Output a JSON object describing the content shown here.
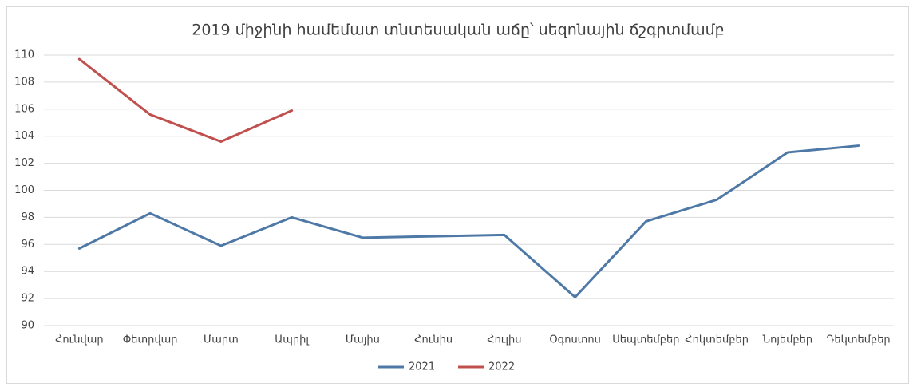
{
  "chart_data": {
    "type": "line",
    "title": "2019 միջինի համեմատ տնտեսական աճը՝ սեզոնային ճշգրտմամբ",
    "categories": [
      "Հունվար",
      "Փետրվար",
      "Մարտ",
      "Ապրիլ",
      "Մայիս",
      "Հունիս",
      "Հուլիս",
      "Օգոստոս",
      "Սեպտեմբեր",
      "Հոկտեմբեր",
      "Նոյեմբեր",
      "Դեկտեմբեր"
    ],
    "series": [
      {
        "name": "2021",
        "color": "#4e79a7",
        "values": [
          95.7,
          98.3,
          95.9,
          98.0,
          96.5,
          96.6,
          96.7,
          92.1,
          97.7,
          99.3,
          102.8,
          103.3
        ]
      },
      {
        "name": "2022",
        "color": "#c0504d",
        "values": [
          109.7,
          105.6,
          103.6,
          105.9,
          null,
          null,
          null,
          null,
          null,
          null,
          null,
          null
        ]
      }
    ],
    "ylim": [
      90,
      110
    ],
    "yticks": [
      90,
      92,
      94,
      96,
      98,
      100,
      102,
      104,
      106,
      108,
      110
    ],
    "grid": true,
    "legend": "bottom"
  }
}
